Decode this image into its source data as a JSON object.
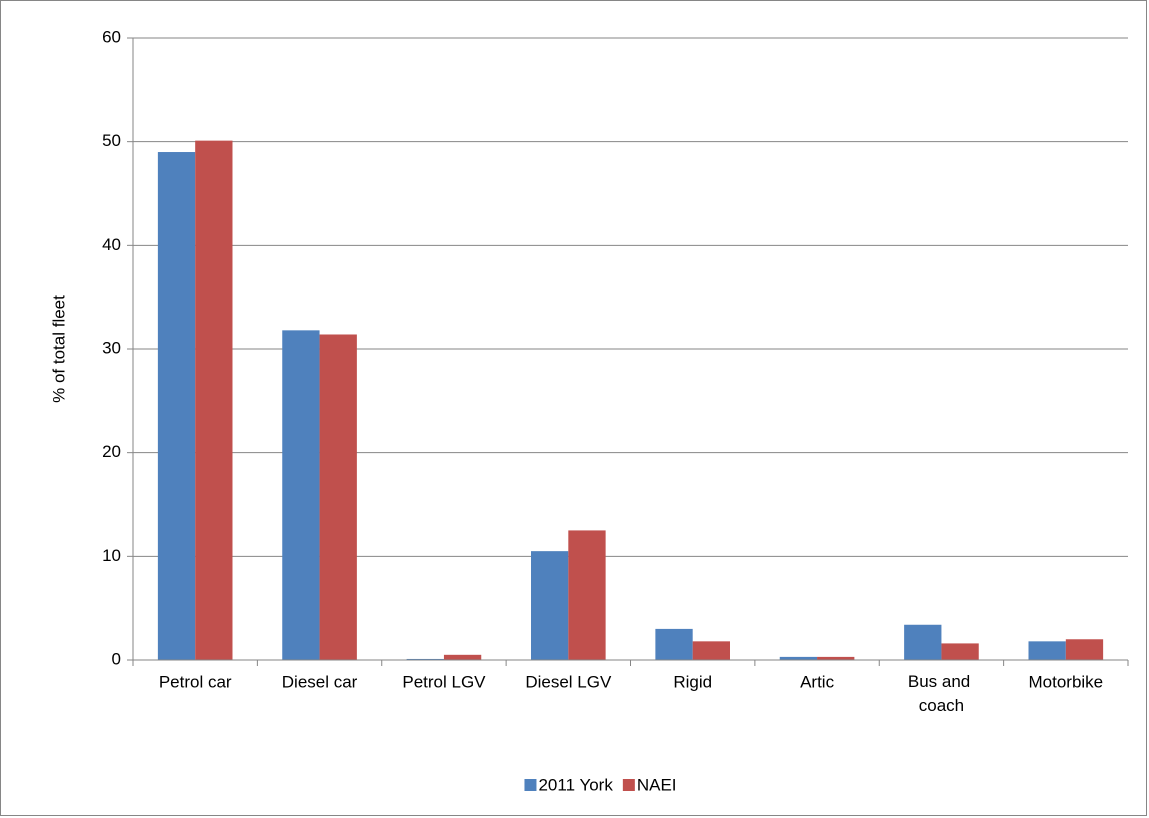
{
  "chart_data": {
    "type": "bar",
    "y_label": "% of total fleet",
    "categories": [
      "Petrol car",
      "Diesel car",
      "Petrol LGV",
      "Diesel LGV",
      "Rigid",
      "Artic",
      "Bus and coach",
      "Motorbike"
    ],
    "series": [
      {
        "name": "2011 York",
        "color": "#4f81bd",
        "values": [
          49,
          31.8,
          0.1,
          10.5,
          3.0,
          0.3,
          3.4,
          1.8
        ]
      },
      {
        "name": "NAEI",
        "color": "#c0504d",
        "values": [
          50.1,
          31.4,
          0.5,
          12.5,
          1.8,
          0.3,
          1.6,
          2.0
        ]
      }
    ],
    "ylim": [
      0,
      60
    ],
    "yticks": [
      0,
      10,
      20,
      30,
      40,
      50,
      60
    ],
    "grid": true,
    "legend": "bottom"
  }
}
